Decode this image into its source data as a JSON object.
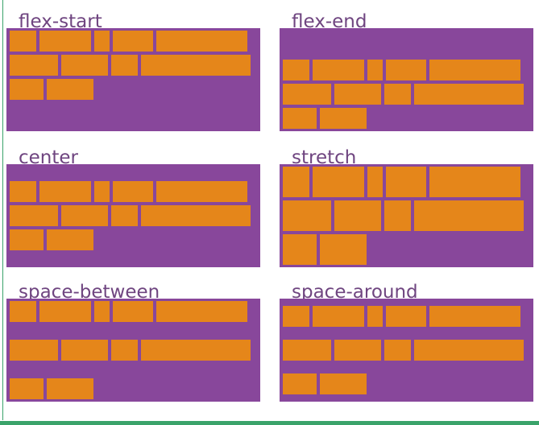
{
  "panels": [
    {
      "label": "flex-start"
    },
    {
      "label": "flex-end"
    },
    {
      "label": "center"
    },
    {
      "label": "stretch"
    },
    {
      "label": "space-between"
    },
    {
      "label": "space-around"
    }
  ]
}
